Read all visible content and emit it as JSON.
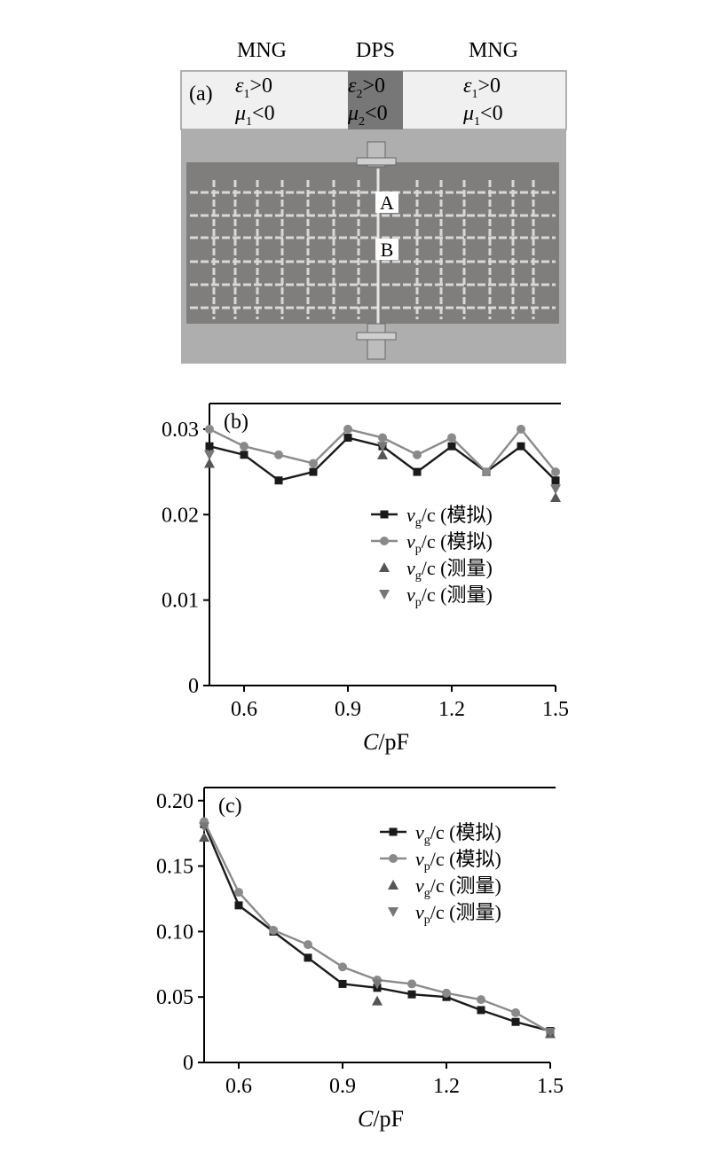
{
  "panel_a": {
    "label": "(a)",
    "header": [
      {
        "name": "MNG",
        "eps": "ε",
        "eps_sub": "1",
        "eps_rel": ">0",
        "mu": "μ",
        "mu_sub": "1",
        "mu_rel": "<0"
      },
      {
        "name": "DPS",
        "eps": "ε",
        "eps_sub": "2",
        "eps_rel": ">0",
        "mu": "μ",
        "mu_sub": "2",
        "mu_rel": "<0"
      },
      {
        "name": "MNG",
        "eps": "ε",
        "eps_sub": "1",
        "eps_rel": ">0",
        "mu": "μ",
        "mu_sub": "1",
        "mu_rel": "<0"
      }
    ],
    "marker_a": "A",
    "marker_b": "B",
    "colors": {
      "board": "#807e7c",
      "frame": "#aeaeae",
      "header_bg": "#f0f0f0",
      "dps_band": "#777777",
      "wire": "#d8d8d8"
    }
  },
  "chart_data": [
    {
      "type": "line",
      "panel_label": "(b)",
      "xlabel": {
        "italic": "C",
        "rest": "/pF"
      },
      "xlim": [
        0.5,
        1.5
      ],
      "ylim": [
        0,
        0.033
      ],
      "xticks": [
        0.6,
        0.9,
        1.2,
        1.5
      ],
      "xtick_labels": [
        "0.6",
        "0.9",
        "1.2",
        "1.5"
      ],
      "yticks": [
        0,
        0.01,
        0.02,
        0.03
      ],
      "ytick_labels": [
        "0",
        "0.01",
        "0.02",
        "0.03"
      ],
      "legend_position": "center-right",
      "series": [
        {
          "name_main": "v",
          "name_sub": "g",
          "name_rest": "/c (模拟)",
          "marker": "square",
          "color": "#1a1a1a",
          "x": [
            0.5,
            0.6,
            0.7,
            0.8,
            0.9,
            1.0,
            1.1,
            1.2,
            1.3,
            1.4,
            1.5
          ],
          "values": [
            0.028,
            0.027,
            0.024,
            0.025,
            0.029,
            0.028,
            0.025,
            0.028,
            0.025,
            0.028,
            0.024
          ]
        },
        {
          "name_main": "v",
          "name_sub": "p",
          "name_rest": "/c (模拟)",
          "marker": "circle",
          "color": "#8a8a8a",
          "x": [
            0.5,
            0.6,
            0.7,
            0.8,
            0.9,
            1.0,
            1.1,
            1.2,
            1.3,
            1.4,
            1.5
          ],
          "values": [
            0.03,
            0.028,
            0.027,
            0.026,
            0.03,
            0.029,
            0.027,
            0.029,
            0.025,
            0.03,
            0.025
          ]
        },
        {
          "name_main": "v",
          "name_sub": "g",
          "name_rest": "/c (测量)",
          "marker": "triangle-up",
          "color": "#555555",
          "x": [
            0.5,
            1.0,
            1.5
          ],
          "values": [
            0.026,
            0.027,
            0.022
          ]
        },
        {
          "name_main": "v",
          "name_sub": "p",
          "name_rest": "/c (测量)",
          "marker": "triangle-down",
          "color": "#777777",
          "x": [
            0.5,
            1.0,
            1.5
          ],
          "values": [
            0.027,
            0.028,
            0.023
          ]
        }
      ]
    },
    {
      "type": "line",
      "panel_label": "(c)",
      "xlabel": {
        "italic": "C",
        "rest": "/pF"
      },
      "xlim": [
        0.5,
        1.5
      ],
      "ylim": [
        0,
        0.21
      ],
      "xticks": [
        0.6,
        0.9,
        1.2,
        1.5
      ],
      "xtick_labels": [
        "0.6",
        "0.9",
        "1.2",
        "1.5"
      ],
      "yticks": [
        0,
        0.05,
        0.1,
        0.15,
        0.2
      ],
      "ytick_labels": [
        "0",
        "0.05",
        "0.10",
        "0.15",
        "0.20"
      ],
      "legend_position": "top-right",
      "series": [
        {
          "name_main": "v",
          "name_sub": "g",
          "name_rest": "/c (模拟)",
          "marker": "square",
          "color": "#1a1a1a",
          "x": [
            0.5,
            0.6,
            0.7,
            0.8,
            0.9,
            1.0,
            1.1,
            1.2,
            1.3,
            1.4,
            1.5
          ],
          "values": [
            0.182,
            0.12,
            0.1,
            0.08,
            0.06,
            0.057,
            0.052,
            0.05,
            0.04,
            0.031,
            0.024
          ]
        },
        {
          "name_main": "v",
          "name_sub": "p",
          "name_rest": "/c (模拟)",
          "marker": "circle",
          "color": "#8a8a8a",
          "x": [
            0.5,
            0.6,
            0.7,
            0.8,
            0.9,
            1.0,
            1.1,
            1.2,
            1.3,
            1.4,
            1.5
          ],
          "values": [
            0.184,
            0.13,
            0.101,
            0.09,
            0.073,
            0.063,
            0.06,
            0.053,
            0.048,
            0.038,
            0.023
          ]
        },
        {
          "name_main": "v",
          "name_sub": "g",
          "name_rest": "/c (测量)",
          "marker": "triangle-up",
          "color": "#555555",
          "x": [
            0.5,
            1.0,
            1.5
          ],
          "values": [
            0.172,
            0.047,
            0.022
          ]
        },
        {
          "name_main": "v",
          "name_sub": "p",
          "name_rest": "/c (测量)",
          "marker": "triangle-down",
          "color": "#777777",
          "x": [
            0.5,
            1.0,
            1.5
          ],
          "values": [
            0.18,
            0.06,
            0.023
          ]
        }
      ]
    }
  ]
}
